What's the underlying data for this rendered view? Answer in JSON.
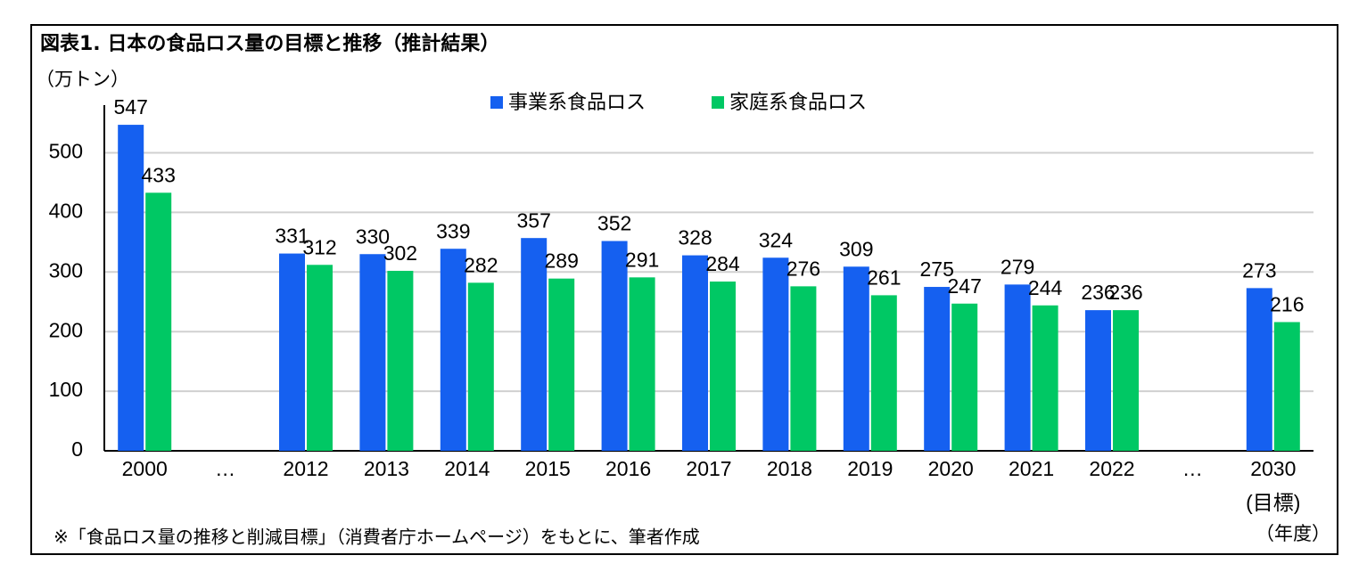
{
  "chart_data": {
    "type": "bar",
    "title": "図表1. 日本の食品ロス量の目標と推移（推計結果）",
    "y_label": "（万トン）",
    "x_label": "（年度）",
    "note": "※「食品ロス量の推移と削減目標」（消費者庁ホームページ）をもとに、筆者作成",
    "categories": [
      "2000",
      "…",
      "2012",
      "2013",
      "2014",
      "2015",
      "2016",
      "2017",
      "2018",
      "2019",
      "2020",
      "2021",
      "2022",
      "…",
      "2030\n(目標)"
    ],
    "series": [
      {
        "name": "事業系食品ロス",
        "color": "#1560f0",
        "values": [
          547,
          null,
          331,
          330,
          339,
          357,
          352,
          328,
          324,
          309,
          275,
          279,
          236,
          null,
          273
        ]
      },
      {
        "name": "家庭系食品ロス",
        "color": "#00c864",
        "values": [
          433,
          null,
          312,
          302,
          282,
          289,
          291,
          284,
          276,
          261,
          247,
          244,
          236,
          null,
          216
        ]
      }
    ],
    "ylim": [
      0,
      580
    ],
    "yticks": [
      0,
      100,
      200,
      300,
      400,
      500
    ],
    "grid": true,
    "legend": "top"
  }
}
